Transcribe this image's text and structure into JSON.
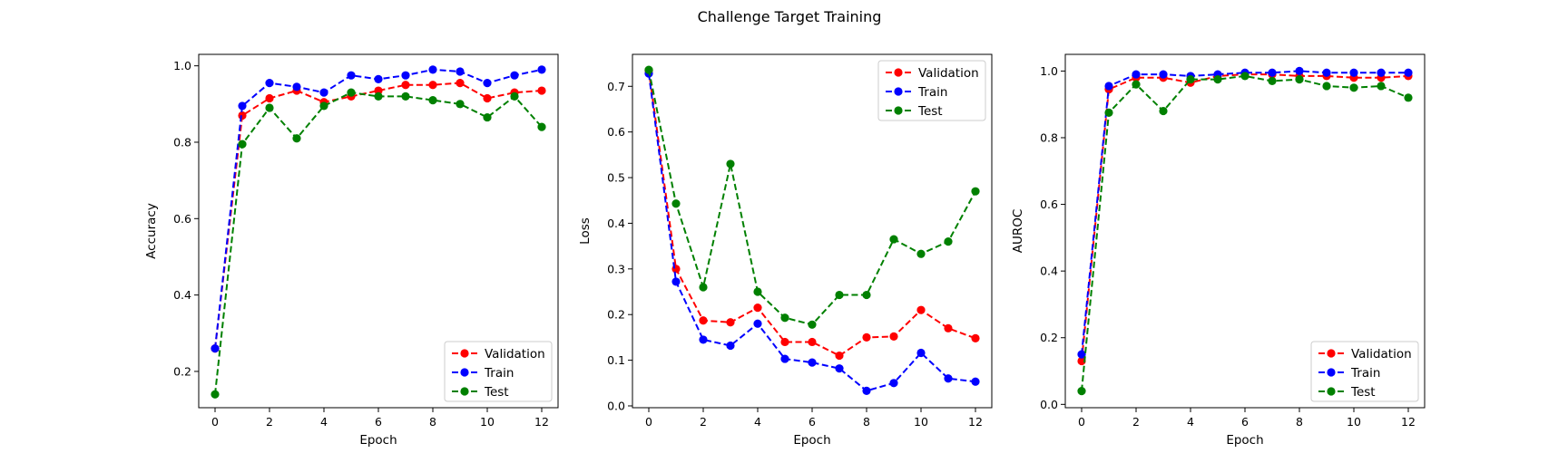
{
  "title": "Challenge Target Training",
  "chart_data": [
    {
      "type": "line",
      "xlabel": "Epoch",
      "ylabel": "Accuracy",
      "x": [
        0,
        1,
        2,
        3,
        4,
        5,
        6,
        7,
        8,
        9,
        10,
        11,
        12
      ],
      "xticks": [
        0,
        2,
        4,
        6,
        8,
        10,
        12
      ],
      "xlim": [
        -0.6,
        12.6
      ],
      "ylim": [
        0.105,
        1.03
      ],
      "yticks": [
        0.2,
        0.4,
        0.6,
        0.8,
        1.0
      ],
      "ytick_labels": [
        "0.2",
        "0.4",
        "0.6",
        "0.8",
        "1.0"
      ],
      "legend": "lower-right",
      "series": [
        {
          "name": "Validation",
          "color": "#ff0000",
          "values": [
            0.26,
            0.87,
            0.915,
            0.935,
            0.905,
            0.92,
            0.935,
            0.95,
            0.95,
            0.955,
            0.915,
            0.93,
            0.935
          ]
        },
        {
          "name": "Train",
          "color": "#0000ff",
          "values": [
            0.26,
            0.895,
            0.955,
            0.945,
            0.93,
            0.975,
            0.965,
            0.975,
            0.99,
            0.985,
            0.955,
            0.975,
            0.99
          ]
        },
        {
          "name": "Test",
          "color": "#008000",
          "values": [
            0.14,
            0.795,
            0.89,
            0.81,
            0.895,
            0.93,
            0.92,
            0.92,
            0.91,
            0.9,
            0.865,
            0.92,
            0.84
          ]
        }
      ]
    },
    {
      "type": "line",
      "xlabel": "Epoch",
      "ylabel": "Loss",
      "x": [
        0,
        1,
        2,
        3,
        4,
        5,
        6,
        7,
        8,
        9,
        10,
        11,
        12
      ],
      "xticks": [
        0,
        2,
        4,
        6,
        8,
        10,
        12
      ],
      "xlim": [
        -0.6,
        12.6
      ],
      "ylim": [
        -0.004,
        0.77
      ],
      "yticks": [
        0.0,
        0.1,
        0.2,
        0.3,
        0.4,
        0.5,
        0.6,
        0.7
      ],
      "ytick_labels": [
        "0.0",
        "0.1",
        "0.2",
        "0.3",
        "0.4",
        "0.5",
        "0.6",
        "0.7"
      ],
      "legend": "upper-right",
      "series": [
        {
          "name": "Validation",
          "color": "#ff0000",
          "values": [
            0.735,
            0.3,
            0.187,
            0.183,
            0.215,
            0.14,
            0.14,
            0.11,
            0.15,
            0.152,
            0.21,
            0.17,
            0.148
          ]
        },
        {
          "name": "Train",
          "color": "#0000ff",
          "values": [
            0.728,
            0.272,
            0.145,
            0.132,
            0.18,
            0.103,
            0.095,
            0.082,
            0.033,
            0.05,
            0.116,
            0.06,
            0.053
          ]
        },
        {
          "name": "Test",
          "color": "#008000",
          "values": [
            0.736,
            0.443,
            0.26,
            0.53,
            0.25,
            0.193,
            0.178,
            0.243,
            0.243,
            0.365,
            0.333,
            0.36,
            0.47
          ]
        }
      ]
    },
    {
      "type": "line",
      "xlabel": "Epoch",
      "ylabel": "AUROC",
      "x": [
        0,
        1,
        2,
        3,
        4,
        5,
        6,
        7,
        8,
        9,
        10,
        11,
        12
      ],
      "xticks": [
        0,
        2,
        4,
        6,
        8,
        10,
        12
      ],
      "xlim": [
        -0.6,
        12.6
      ],
      "ylim": [
        -0.01,
        1.05
      ],
      "yticks": [
        0.0,
        0.2,
        0.4,
        0.6,
        0.8,
        1.0
      ],
      "ytick_labels": [
        "0.0",
        "0.2",
        "0.4",
        "0.6",
        "0.8",
        "1.0"
      ],
      "legend": "lower-right",
      "series": [
        {
          "name": "Validation",
          "color": "#ff0000",
          "values": [
            0.13,
            0.945,
            0.98,
            0.98,
            0.965,
            0.985,
            0.99,
            0.99,
            0.985,
            0.985,
            0.98,
            0.98,
            0.985
          ]
        },
        {
          "name": "Train",
          "color": "#0000ff",
          "values": [
            0.15,
            0.955,
            0.99,
            0.99,
            0.985,
            0.99,
            0.995,
            0.995,
            1.0,
            0.995,
            0.995,
            0.995,
            0.995
          ]
        },
        {
          "name": "Test",
          "color": "#008000",
          "values": [
            0.04,
            0.875,
            0.96,
            0.88,
            0.975,
            0.975,
            0.985,
            0.97,
            0.975,
            0.955,
            0.95,
            0.955,
            0.92
          ]
        }
      ]
    }
  ]
}
